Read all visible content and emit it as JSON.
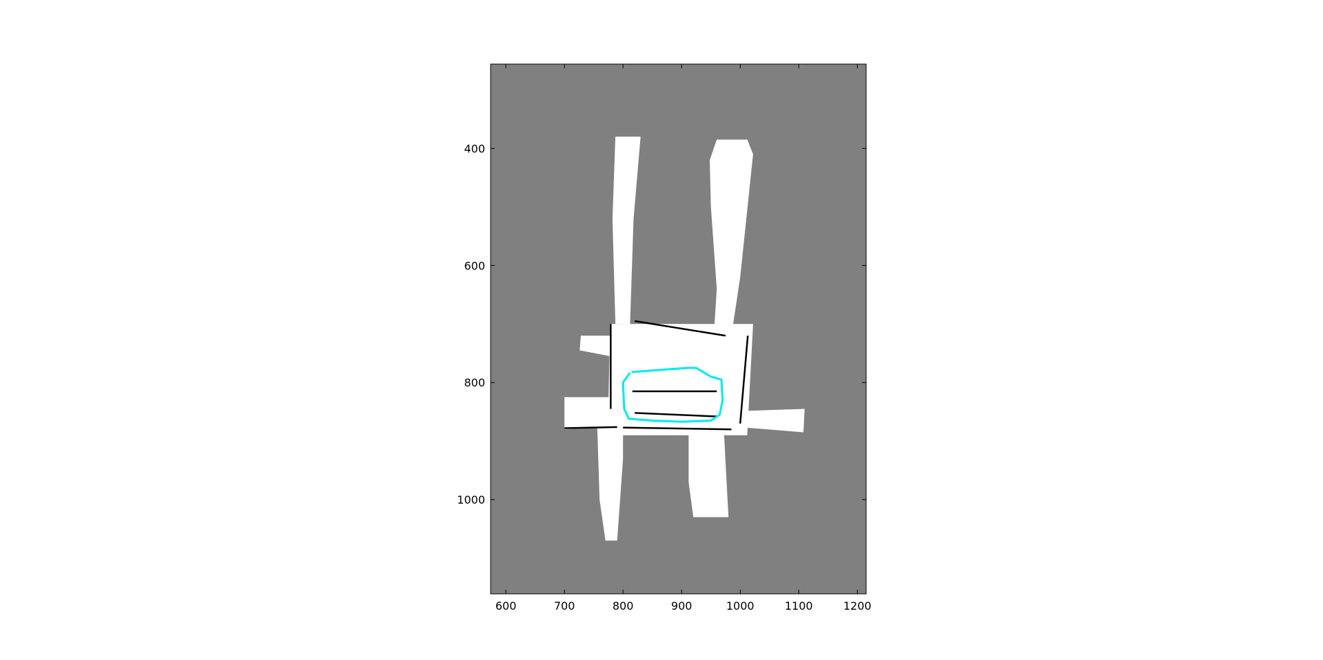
{
  "colors": {
    "unknown": "#808080",
    "free": "#ffffff",
    "occupied": "#000000",
    "trajectory": "#00e8f0",
    "axes_frame": "#000000"
  },
  "map": {
    "type": "occupancy-grid",
    "x_axis": {
      "range": [
        574,
        1215
      ],
      "ticks": [
        600,
        700,
        800,
        900,
        1000,
        1100,
        1200
      ],
      "tick_labels": [
        "600",
        "700",
        "800",
        "900",
        "1000",
        "1100",
        "1200"
      ]
    },
    "y_axis": {
      "range": [
        256,
        1161
      ],
      "inverted": true,
      "ticks": [
        400,
        600,
        800,
        1000
      ],
      "tick_labels": [
        "400",
        "600",
        "800",
        "1000"
      ]
    },
    "free_regions": [
      [
        [
          787,
          380
        ],
        [
          830,
          380
        ],
        [
          818,
          520
        ],
        [
          812,
          700
        ],
        [
          787,
          700
        ],
        [
          782,
          520
        ]
      ],
      [
        [
          960,
          385
        ],
        [
          1012,
          385
        ],
        [
          1022,
          410
        ],
        [
          1000,
          620
        ],
        [
          985,
          720
        ],
        [
          955,
          720
        ],
        [
          960,
          640
        ],
        [
          950,
          500
        ],
        [
          948,
          420
        ]
      ],
      [
        [
          778,
          700
        ],
        [
          1022,
          700
        ],
        [
          1012,
          890
        ],
        [
          774,
          890
        ]
      ],
      [
        [
          728,
          720
        ],
        [
          778,
          720
        ],
        [
          778,
          755
        ],
        [
          726,
          745
        ]
      ],
      [
        [
          700,
          825
        ],
        [
          792,
          825
        ],
        [
          800,
          875
        ],
        [
          700,
          880
        ]
      ],
      [
        [
          965,
          850
        ],
        [
          1110,
          845
        ],
        [
          1108,
          885
        ],
        [
          985,
          875
        ]
      ],
      [
        [
          756,
          875
        ],
        [
          800,
          870
        ],
        [
          800,
          930
        ],
        [
          790,
          1070
        ],
        [
          770,
          1070
        ],
        [
          760,
          1000
        ]
      ],
      [
        [
          912,
          880
        ],
        [
          972,
          880
        ],
        [
          980,
          1030
        ],
        [
          920,
          1030
        ],
        [
          912,
          970
        ]
      ]
    ],
    "walls": [
      [
        [
          779,
          700
        ],
        [
          779,
          845
        ]
      ],
      [
        [
          1013,
          720
        ],
        [
          1000,
          870
        ]
      ],
      [
        [
          820,
          695
        ],
        [
          975,
          720
        ]
      ],
      [
        [
          816,
          815
        ],
        [
          960,
          815
        ]
      ],
      [
        [
          820,
          852
        ],
        [
          960,
          858
        ]
      ],
      [
        [
          800,
          877
        ],
        [
          985,
          880
        ]
      ],
      [
        [
          700,
          878
        ],
        [
          790,
          876
        ]
      ]
    ],
    "trajectory": [
      [
        815,
        782
      ],
      [
        870,
        778
      ],
      [
        910,
        775
      ],
      [
        925,
        775
      ],
      [
        950,
        790
      ],
      [
        968,
        795
      ],
      [
        970,
        830
      ],
      [
        965,
        855
      ],
      [
        950,
        865
      ],
      [
        900,
        867
      ],
      [
        850,
        865
      ],
      [
        810,
        862
      ],
      [
        802,
        845
      ],
      [
        800,
        800
      ],
      [
        812,
        783
      ]
    ]
  }
}
